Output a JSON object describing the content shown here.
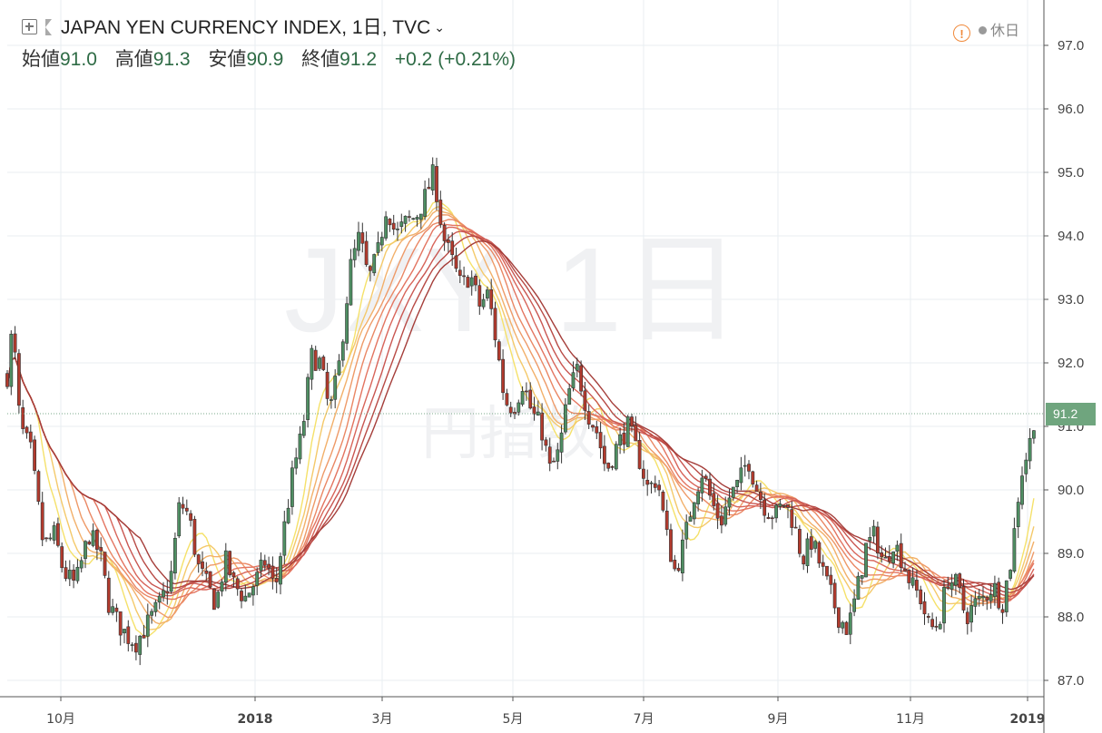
{
  "header": {
    "title": "JAPAN YEN CURRENCY INDEX, 1日, TVC",
    "open_label": "始値",
    "open": "91.0",
    "high_label": "高値",
    "high": "91.3",
    "low_label": "安値",
    "low": "90.9",
    "close_label": "終値",
    "close": "91.2",
    "change": "+0.2",
    "change_pct": "(+0.21%)"
  },
  "status": {
    "text": "休日",
    "warning_icon": "warning-icon"
  },
  "watermark": {
    "symbol": "JXY, 1日",
    "name": "円指数"
  },
  "last_price_label": "91.2",
  "colors": {
    "up": "#4f8f63",
    "down": "#b23a2d",
    "grid": "#e9edf2",
    "last_price": "#6fa57e",
    "ribbon": [
      "#f5e16a",
      "#f4c96a",
      "#f2b06a",
      "#ee9a68",
      "#ea8764",
      "#e37460",
      "#d8655a",
      "#c95651",
      "#b84a45",
      "#a53e3a"
    ]
  },
  "chart_data": {
    "type": "candlestick",
    "title": "JAPAN YEN CURRENCY INDEX, 1日, TVC",
    "ylim": [
      86.8,
      97.4
    ],
    "yticks": [
      87.0,
      88.0,
      89.0,
      90.0,
      91.0,
      92.0,
      93.0,
      94.0,
      95.0,
      96.0,
      97.0
    ],
    "xticks": [
      "10月",
      "2018",
      "3月",
      "5月",
      "7月",
      "9月",
      "11月",
      "2019"
    ],
    "last_price": 91.2,
    "grid": true,
    "close_path": [
      [
        0,
        91.8
      ],
      [
        6,
        92.6
      ],
      [
        14,
        91.0
      ],
      [
        26,
        90.6
      ],
      [
        40,
        89.1
      ],
      [
        52,
        89.3
      ],
      [
        62,
        88.7
      ],
      [
        75,
        88.5
      ],
      [
        90,
        89.3
      ],
      [
        102,
        89.0
      ],
      [
        112,
        88.2
      ],
      [
        122,
        87.9
      ],
      [
        132,
        87.7
      ],
      [
        142,
        87.6
      ],
      [
        155,
        87.9
      ],
      [
        168,
        88.2
      ],
      [
        180,
        88.6
      ],
      [
        190,
        89.8
      ],
      [
        200,
        89.6
      ],
      [
        210,
        88.8
      ],
      [
        220,
        88.5
      ],
      [
        230,
        88.2
      ],
      [
        240,
        88.9
      ],
      [
        250,
        88.5
      ],
      [
        262,
        88.3
      ],
      [
        275,
        88.6
      ],
      [
        285,
        88.9
      ],
      [
        295,
        88.4
      ],
      [
        305,
        89.4
      ],
      [
        315,
        90.3
      ],
      [
        325,
        90.9
      ],
      [
        335,
        92.1
      ],
      [
        345,
        92.0
      ],
      [
        355,
        91.2
      ],
      [
        365,
        91.9
      ],
      [
        378,
        93.5
      ],
      [
        388,
        94.0
      ],
      [
        398,
        93.3
      ],
      [
        408,
        93.7
      ],
      [
        418,
        94.5
      ],
      [
        428,
        94.0
      ],
      [
        438,
        94.2
      ],
      [
        450,
        94.3
      ],
      [
        460,
        94.6
      ],
      [
        470,
        95.0
      ],
      [
        480,
        94.0
      ],
      [
        490,
        93.6
      ],
      [
        500,
        93.2
      ],
      [
        510,
        93.4
      ],
      [
        520,
        92.9
      ],
      [
        530,
        93.1
      ],
      [
        540,
        92.2
      ],
      [
        548,
        91.4
      ],
      [
        558,
        91.3
      ],
      [
        568,
        91.7
      ],
      [
        578,
        91.2
      ],
      [
        588,
        91.0
      ],
      [
        598,
        90.3
      ],
      [
        608,
        90.6
      ],
      [
        618,
        91.5
      ],
      [
        628,
        91.9
      ],
      [
        640,
        91.2
      ],
      [
        650,
        90.9
      ],
      [
        660,
        90.3
      ],
      [
        672,
        90.7
      ],
      [
        684,
        91.0
      ],
      [
        696,
        90.5
      ],
      [
        706,
        90.0
      ],
      [
        716,
        90.2
      ],
      [
        726,
        89.3
      ],
      [
        736,
        88.7
      ],
      [
        746,
        89.2
      ],
      [
        756,
        89.9
      ],
      [
        766,
        90.3
      ],
      [
        776,
        89.8
      ],
      [
        786,
        89.5
      ],
      [
        796,
        89.9
      ],
      [
        806,
        90.1
      ],
      [
        816,
        90.5
      ],
      [
        826,
        90.0
      ],
      [
        836,
        89.7
      ],
      [
        846,
        89.6
      ],
      [
        856,
        89.8
      ],
      [
        866,
        89.5
      ],
      [
        876,
        88.9
      ],
      [
        886,
        89.2
      ],
      [
        896,
        88.8
      ],
      [
        906,
        88.4
      ],
      [
        916,
        88.0
      ],
      [
        926,
        87.8
      ],
      [
        936,
        88.4
      ],
      [
        946,
        89.1
      ],
      [
        956,
        89.3
      ],
      [
        966,
        88.8
      ],
      [
        976,
        89.2
      ],
      [
        986,
        88.9
      ],
      [
        996,
        88.5
      ],
      [
        1006,
        88.3
      ],
      [
        1016,
        87.8
      ],
      [
        1026,
        87.9
      ],
      [
        1036,
        88.6
      ],
      [
        1046,
        88.5
      ],
      [
        1056,
        88.0
      ],
      [
        1066,
        88.2
      ],
      [
        1076,
        88.3
      ],
      [
        1086,
        88.5
      ],
      [
        1096,
        88.2
      ],
      [
        1106,
        88.9
      ],
      [
        1116,
        90.2
      ],
      [
        1126,
        90.7
      ],
      [
        1132,
        91.2
      ]
    ]
  }
}
